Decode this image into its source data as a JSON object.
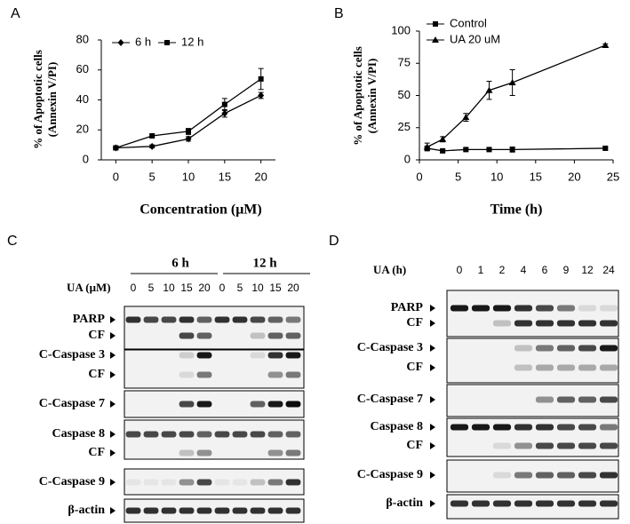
{
  "chart_data": [
    {
      "type": "line",
      "panel": "A",
      "ylabel": [
        "% of Apoptotic cells",
        "(Annexin V/PI)"
      ],
      "xlabel": "Concentration (μM)",
      "x": [
        0,
        5,
        10,
        15,
        20
      ],
      "xlim": [
        -2,
        22
      ],
      "xticks": [
        0,
        5,
        10,
        15,
        20
      ],
      "ylim": [
        0,
        80
      ],
      "yticks": [
        0,
        20,
        40,
        60,
        80
      ],
      "legend": "upper left",
      "series": [
        {
          "name": "6 h",
          "color": "#000000",
          "marker": "diamond",
          "values": [
            8,
            9,
            14,
            31,
            43
          ],
          "errors": [
            1,
            1,
            1.5,
            2.5,
            2
          ]
        },
        {
          "name": "12 h",
          "color": "#000000",
          "marker": "square",
          "values": [
            8,
            16,
            19,
            37,
            54
          ],
          "errors": [
            1,
            1,
            2,
            4,
            7
          ]
        }
      ]
    },
    {
      "type": "line",
      "panel": "B",
      "ylabel": [
        "% of Apoptotic cells",
        "(Annexin V/PI)"
      ],
      "xlabel": "Time (h)",
      "x": [
        1,
        3,
        6,
        9,
        12,
        24
      ],
      "xlim": [
        0,
        25
      ],
      "xticks": [
        0,
        5,
        10,
        15,
        20,
        25
      ],
      "ylim": [
        0,
        100
      ],
      "yticks": [
        0,
        25,
        50,
        75,
        100
      ],
      "legend": "upper left",
      "series": [
        {
          "name": "Control",
          "color": "#000000",
          "marker": "square",
          "values": [
            9,
            7,
            8,
            8,
            8,
            9
          ],
          "errors": [
            1,
            1,
            1,
            1,
            2,
            1
          ]
        },
        {
          "name": "UA 20 uM",
          "color": "#000000",
          "marker": "triangle",
          "values": [
            10,
            16,
            33,
            54,
            60,
            89
          ],
          "errors": [
            3,
            2,
            3,
            7,
            10,
            1
          ]
        }
      ]
    }
  ],
  "blots": [
    {
      "panel": "C",
      "groups": [
        "6 h",
        "12 h"
      ],
      "treatment": "UA (μM)",
      "lanes": [
        0,
        5,
        10,
        15,
        20,
        0,
        5,
        10,
        15,
        20
      ],
      "rows": [
        [
          "PARP",
          "CF"
        ],
        [
          "C-Caspase 3",
          "CF"
        ],
        [
          "C-Caspase 7"
        ],
        [
          "Caspase 8",
          "CF"
        ],
        [
          "C-Caspase 9"
        ],
        [
          "β-actin"
        ]
      ]
    },
    {
      "panel": "D",
      "treatment": "UA (h)",
      "lanes": [
        0,
        1,
        2,
        4,
        6,
        9,
        12,
        24
      ],
      "rows": [
        [
          "PARP",
          "CF"
        ],
        [
          "C-Caspase 3",
          "CF"
        ],
        [
          "C-Caspase 7"
        ],
        [
          "Caspase 8",
          "CF"
        ],
        [
          "C-Caspase 9"
        ],
        [
          "β-actin"
        ]
      ]
    }
  ]
}
